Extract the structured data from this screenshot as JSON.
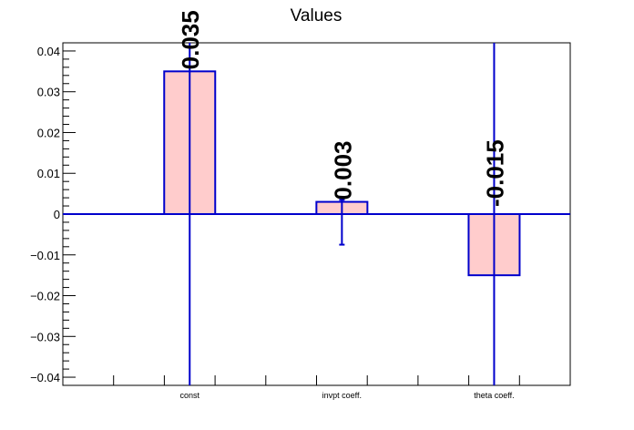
{
  "chart_data": {
    "type": "bar",
    "title": "Values",
    "categories": [
      "const",
      "invpt coeff.",
      "theta coeff."
    ],
    "values": [
      0.035,
      0.003,
      -0.015
    ],
    "value_labels": [
      "0.035",
      "0.003",
      "-0.015"
    ],
    "error_bars": [
      [
        -0.042,
        0.042
      ],
      [
        -0.0075,
        0.0035
      ],
      [
        -0.042,
        0.042
      ]
    ],
    "xlabel": "",
    "ylabel": "",
    "ylim": [
      -0.042,
      0.042
    ],
    "yticks": [
      -0.04,
      -0.03,
      -0.02,
      -0.01,
      0,
      0.01,
      0.02,
      0.03,
      0.04
    ],
    "ytick_labels": [
      "−0.04",
      "−0.03",
      "−0.02",
      "−0.01",
      "0",
      "0.01",
      "0.02",
      "0.03",
      "0.04"
    ],
    "grid": false,
    "colors": {
      "bar_fill": "#ffcccc",
      "bar_edge": "#0000cc",
      "zero_line": "#0000cc",
      "error_bar": "#0000cc"
    }
  }
}
